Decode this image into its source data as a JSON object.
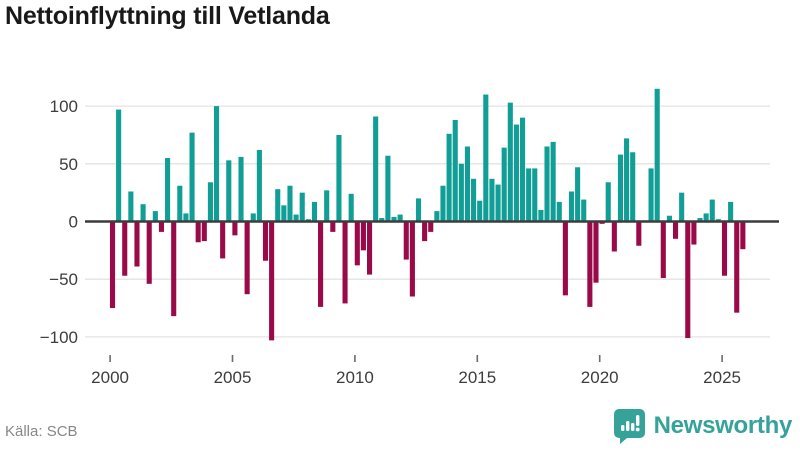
{
  "title": "Nettoinflyttning till Vetlanda",
  "footer": {
    "source": "Källa: SCB"
  },
  "brand": {
    "name": "Newsworthy"
  },
  "colors": {
    "positive": "#109E96",
    "negative": "#9B0A48",
    "grid": "#E3E3E3",
    "zero_line": "#3C3C3C",
    "tick_mark": "#6B6B6B",
    "axis_text": "#3D3D3D",
    "title_text": "#191919",
    "source_text": "#878787",
    "brand_teal": "#35A39A"
  },
  "chart_data": {
    "type": "bar",
    "title": "Nettoinflyttning till Vetlanda",
    "xlabel": "",
    "ylabel": "",
    "frequency": "quarterly",
    "start_year": 2000,
    "x_tick_years": [
      "2000",
      "2005",
      "2010",
      "2015",
      "2020",
      "2025"
    ],
    "y_tick_labels": [
      "100",
      "50",
      "0",
      "−50",
      "−100"
    ],
    "y_tick_values": [
      100,
      50,
      0,
      -50,
      -100
    ],
    "ylim": [
      -112,
      118
    ],
    "grid": true,
    "legend": "none",
    "values": [
      -75,
      97,
      -47,
      26,
      -39,
      15,
      -54,
      9,
      -9,
      55,
      -82,
      31,
      7,
      77,
      -18,
      -17,
      34,
      100,
      -32,
      53,
      -12,
      56,
      -63,
      7,
      62,
      -34,
      -103,
      28,
      14,
      31,
      6,
      25,
      2,
      17,
      -74,
      27,
      -9,
      75,
      -71,
      24,
      -38,
      -25,
      -46,
      91,
      3,
      57,
      4,
      6,
      -33,
      -65,
      20,
      -17,
      -9,
      9,
      31,
      76,
      88,
      50,
      65,
      37,
      18,
      110,
      37,
      32,
      64,
      103,
      84,
      90,
      46,
      46,
      10,
      65,
      69,
      17,
      -64,
      26,
      47,
      19,
      -74,
      -53,
      -2,
      34,
      -26,
      58,
      72,
      60,
      -21,
      1,
      46,
      115,
      -49,
      5,
      -15,
      25,
      -101,
      -20,
      3,
      7,
      19,
      2,
      -47,
      17,
      -79,
      -24
    ]
  }
}
